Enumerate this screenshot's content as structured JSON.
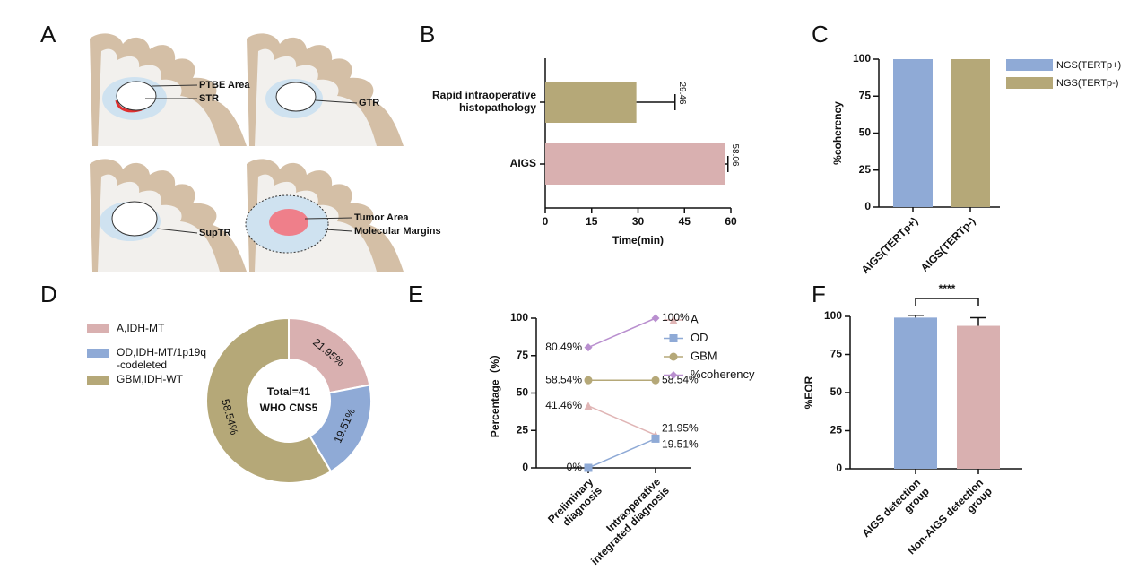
{
  "diagram": {
    "panel_label": "A",
    "labels": [
      "PTBE Area",
      "STR",
      "GTR",
      "SupTR",
      "Tumor Area",
      "Molecular Margins"
    ]
  },
  "chart_data": [
    {
      "type": "bar",
      "horizontal": true,
      "panel_label": "B",
      "categories": [
        "Rapid intraoperative\nhistopathology",
        "AIGS"
      ],
      "values": [
        29.46,
        58.06
      ],
      "errors": [
        12.5,
        1.0
      ],
      "colors": [
        "#b5a878",
        "#d9b0b0"
      ],
      "xlabel": "Time(min)",
      "xlim": [
        0,
        60
      ],
      "xticks": [
        0,
        15,
        30,
        45,
        60
      ]
    },
    {
      "type": "bar",
      "panel_label": "C",
      "categories": [
        "AIGS(TERTp+)",
        "AIGS(TERTp-)"
      ],
      "series": [
        {
          "name": "NGS(TERTp+)",
          "color": "#8faad6",
          "values": [
            100,
            null
          ]
        },
        {
          "name": "NGS(TERTp-)",
          "color": "#b5a878",
          "values": [
            null,
            100
          ]
        }
      ],
      "ylabel": "%coherency",
      "ylim": [
        0,
        100
      ],
      "yticks": [
        0,
        25,
        50,
        75,
        100
      ],
      "legend": "upper right"
    },
    {
      "type": "pie",
      "hole": true,
      "panel_label": "D",
      "categories": [
        "A,IDH-MT",
        "OD,IDH-MT/1p19q\n-codeleted",
        "GBM,IDH-WT"
      ],
      "values": [
        21.95,
        19.51,
        58.54
      ],
      "value_labels": [
        "21.95%",
        "19.51%",
        "58.54%"
      ],
      "colors": [
        "#d9b0b0",
        "#8faad6",
        "#b5a878"
      ],
      "center_text": [
        "Total=41",
        "WHO CNS5"
      ],
      "legend": "left"
    },
    {
      "type": "line",
      "panel_label": "E",
      "categories": [
        "Preliminary\ndiagnosis",
        "Intraoperative\nintegrated diagnosis"
      ],
      "series": [
        {
          "name": "A",
          "color": "#e0b5b5",
          "marker": "triangle",
          "values": [
            41.46,
            21.95
          ],
          "value_labels": [
            "41.46%",
            "21.95%"
          ]
        },
        {
          "name": "OD",
          "color": "#8faad6",
          "marker": "square",
          "values": [
            0,
            19.51
          ],
          "value_labels": [
            "0%",
            "19.51%"
          ]
        },
        {
          "name": "GBM",
          "color": "#b5a878",
          "marker": "circle",
          "values": [
            58.54,
            58.54
          ],
          "value_labels": [
            "58.54%",
            "58.54%"
          ]
        },
        {
          "name": "%coherency",
          "color": "#b98fcf",
          "marker": "diamond",
          "values": [
            80.49,
            100
          ],
          "value_labels": [
            "80.49%",
            "100%"
          ]
        }
      ],
      "ylabel": "Percentage（%）",
      "ylim": [
        0,
        100
      ],
      "yticks": [
        0,
        25,
        50,
        75,
        100
      ],
      "legend": "upper right"
    },
    {
      "type": "bar",
      "panel_label": "F",
      "categories": [
        "AIGS detection\ngroup",
        "Non-AIGS detection\ngroup"
      ],
      "values": [
        99.2,
        93.8
      ],
      "errors": [
        1.5,
        5.3
      ],
      "colors": [
        "#8faad6",
        "#d9b0b0"
      ],
      "ylabel": "%EOR",
      "ylim": [
        0,
        100
      ],
      "yticks": [
        0,
        25,
        50,
        75,
        100
      ],
      "annotation": "****"
    }
  ]
}
